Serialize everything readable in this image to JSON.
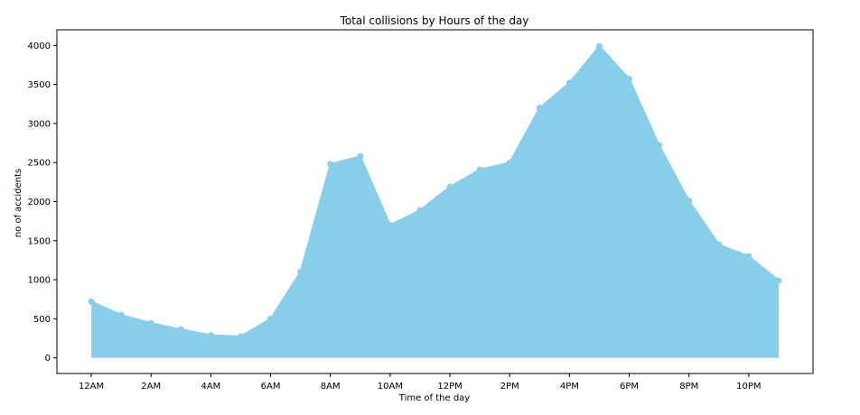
{
  "chart_data": {
    "type": "area",
    "title": "Total collisions by Hours of the day",
    "xlabel": "Time of the day",
    "ylabel": "no of accidents",
    "x": [
      0,
      1,
      2,
      3,
      4,
      5,
      6,
      7,
      8,
      9,
      10,
      11,
      12,
      13,
      14,
      15,
      16,
      17,
      18,
      19,
      20,
      21,
      22,
      23
    ],
    "values": [
      720,
      550,
      445,
      365,
      290,
      275,
      500,
      1100,
      2480,
      2580,
      1700,
      1890,
      2190,
      2410,
      2500,
      3200,
      3520,
      3990,
      3570,
      2720,
      2010,
      1450,
      1300,
      990
    ],
    "xticks": [
      0,
      2,
      4,
      6,
      8,
      10,
      12,
      14,
      16,
      18,
      20,
      22
    ],
    "xtick_labels": [
      "12AM",
      "2AM",
      "4AM",
      "6AM",
      "8AM",
      "10AM",
      "12PM",
      "2PM",
      "4PM",
      "6PM",
      "8PM",
      "10PM"
    ],
    "yticks": [
      0,
      500,
      1000,
      1500,
      2000,
      2500,
      3000,
      3500,
      4000
    ],
    "ylim": [
      -200,
      4200
    ],
    "xlim": [
      -1.15,
      24.15
    ],
    "color": "#87ceeb",
    "grid": false,
    "legend": "none"
  }
}
